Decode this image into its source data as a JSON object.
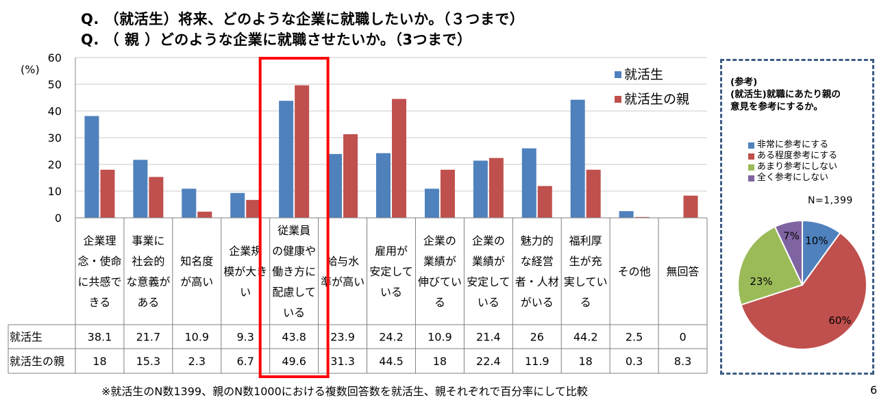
{
  "header": {
    "q1": "Q.  （就活生）将来、どのような企業に就職したいか。（３つまで）",
    "q2": "Q.  （    親    ）どのような企業に就職させたいか。（3つまで）"
  },
  "chart_data": [
    {
      "type": "bar",
      "ylabel": "(%)",
      "ylim": [
        0,
        60
      ],
      "yticks": [
        0,
        10,
        20,
        30,
        40,
        50,
        60
      ],
      "grid": true,
      "legend": "top-right",
      "categories": [
        [
          "企業理",
          "念・使命",
          "に共感で",
          "きる"
        ],
        [
          "事業に",
          "社会的",
          "な意義が",
          "ある"
        ],
        [
          "知名度",
          "が高い"
        ],
        [
          "企業規",
          "模が大き",
          "い"
        ],
        [
          "従業員",
          "の健康や",
          "働き方に",
          "配慮して",
          "いる"
        ],
        [
          "給与水",
          "準が高い"
        ],
        [
          "雇用が",
          "安定して",
          "いる"
        ],
        [
          "企業の",
          "業績が",
          "伸びてい",
          "る"
        ],
        [
          "企業の",
          "業績が",
          "安定して",
          "いる"
        ],
        [
          "魅力的",
          "な経営",
          "者・人材",
          "がいる"
        ],
        [
          "福利厚",
          "生が充",
          "実してい",
          "る"
        ],
        [
          "その他"
        ],
        [
          "無回答"
        ]
      ],
      "series": [
        {
          "name": "就活生",
          "color": "#4f81bd",
          "values": [
            38.1,
            21.7,
            10.9,
            9.3,
            43.8,
            23.9,
            24.2,
            10.9,
            21.4,
            26,
            44.2,
            2.5,
            0
          ]
        },
        {
          "name": "就活生の親",
          "color": "#c0504d",
          "values": [
            18,
            15.3,
            2.3,
            6.7,
            49.6,
            31.3,
            44.5,
            18,
            22.4,
            11.9,
            18,
            0.3,
            8.3
          ]
        }
      ],
      "table_rows": [
        {
          "label": "就活生",
          "cells": [
            "38.1",
            "21.7",
            "10.9",
            "9.3",
            "43.8",
            "23.9",
            "24.2",
            "10.9",
            "21.4",
            "26",
            "44.2",
            "2.5",
            "0"
          ]
        },
        {
          "label": "就活生の親",
          "cells": [
            "18",
            "15.3",
            "2.3",
            "6.7",
            "49.6",
            "31.3",
            "44.5",
            "18",
            "22.4",
            "11.9",
            "18",
            "0.3",
            "8.3"
          ]
        }
      ],
      "highlight_category_index": 4,
      "highlight_color": "#ff0000"
    },
    {
      "type": "pie",
      "title": "(参考)\n(就活生)就職にあたり親の\n意見を参考にするか。",
      "n_label": "N=1,399",
      "slices": [
        {
          "label": "非常に参考にする",
          "value": 10,
          "text": "10%",
          "color": "#4f81bd"
        },
        {
          "label": "ある程度参考にする",
          "value": 60,
          "text": "60%",
          "color": "#c0504d"
        },
        {
          "label": "あまり参考にしない",
          "value": 23,
          "text": "23%",
          "color": "#9bbb59"
        },
        {
          "label": "全く参考にしない",
          "value": 7,
          "text": "7%",
          "color": "#8064a2"
        }
      ]
    }
  ],
  "footnote": "※就活生のN数1399、親のN数1000における複数回答数を就活生、親それぞれで百分率にして比較",
  "corner_mark": "6"
}
